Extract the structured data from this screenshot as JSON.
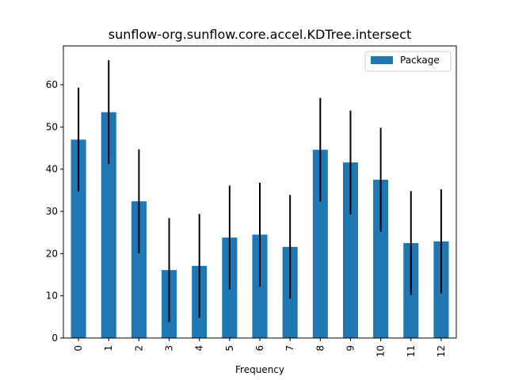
{
  "chart_data": {
    "type": "bar",
    "title": "sunflow-org.sunflow.core.accel.KDTree.intersect",
    "xlabel": "Frequency",
    "ylabel": "",
    "categories": [
      "0",
      "1",
      "2",
      "3",
      "4",
      "5",
      "6",
      "7",
      "8",
      "9",
      "10",
      "11",
      "12"
    ],
    "series": [
      {
        "name": "Package",
        "color": "#1f77b4",
        "values": [
          47.0,
          53.5,
          32.4,
          16.1,
          17.1,
          23.8,
          24.5,
          21.6,
          44.6,
          41.6,
          37.5,
          22.5,
          22.9
        ],
        "error": [
          12.3,
          12.3,
          12.3,
          12.3,
          12.3,
          12.3,
          12.3,
          12.3,
          12.3,
          12.3,
          12.3,
          12.3,
          12.3
        ]
      }
    ],
    "ylim": [
      0,
      69.2
    ],
    "yticks": [
      0,
      10,
      20,
      30,
      40,
      50,
      60
    ],
    "legend_position": "top-right",
    "grid": false
  }
}
